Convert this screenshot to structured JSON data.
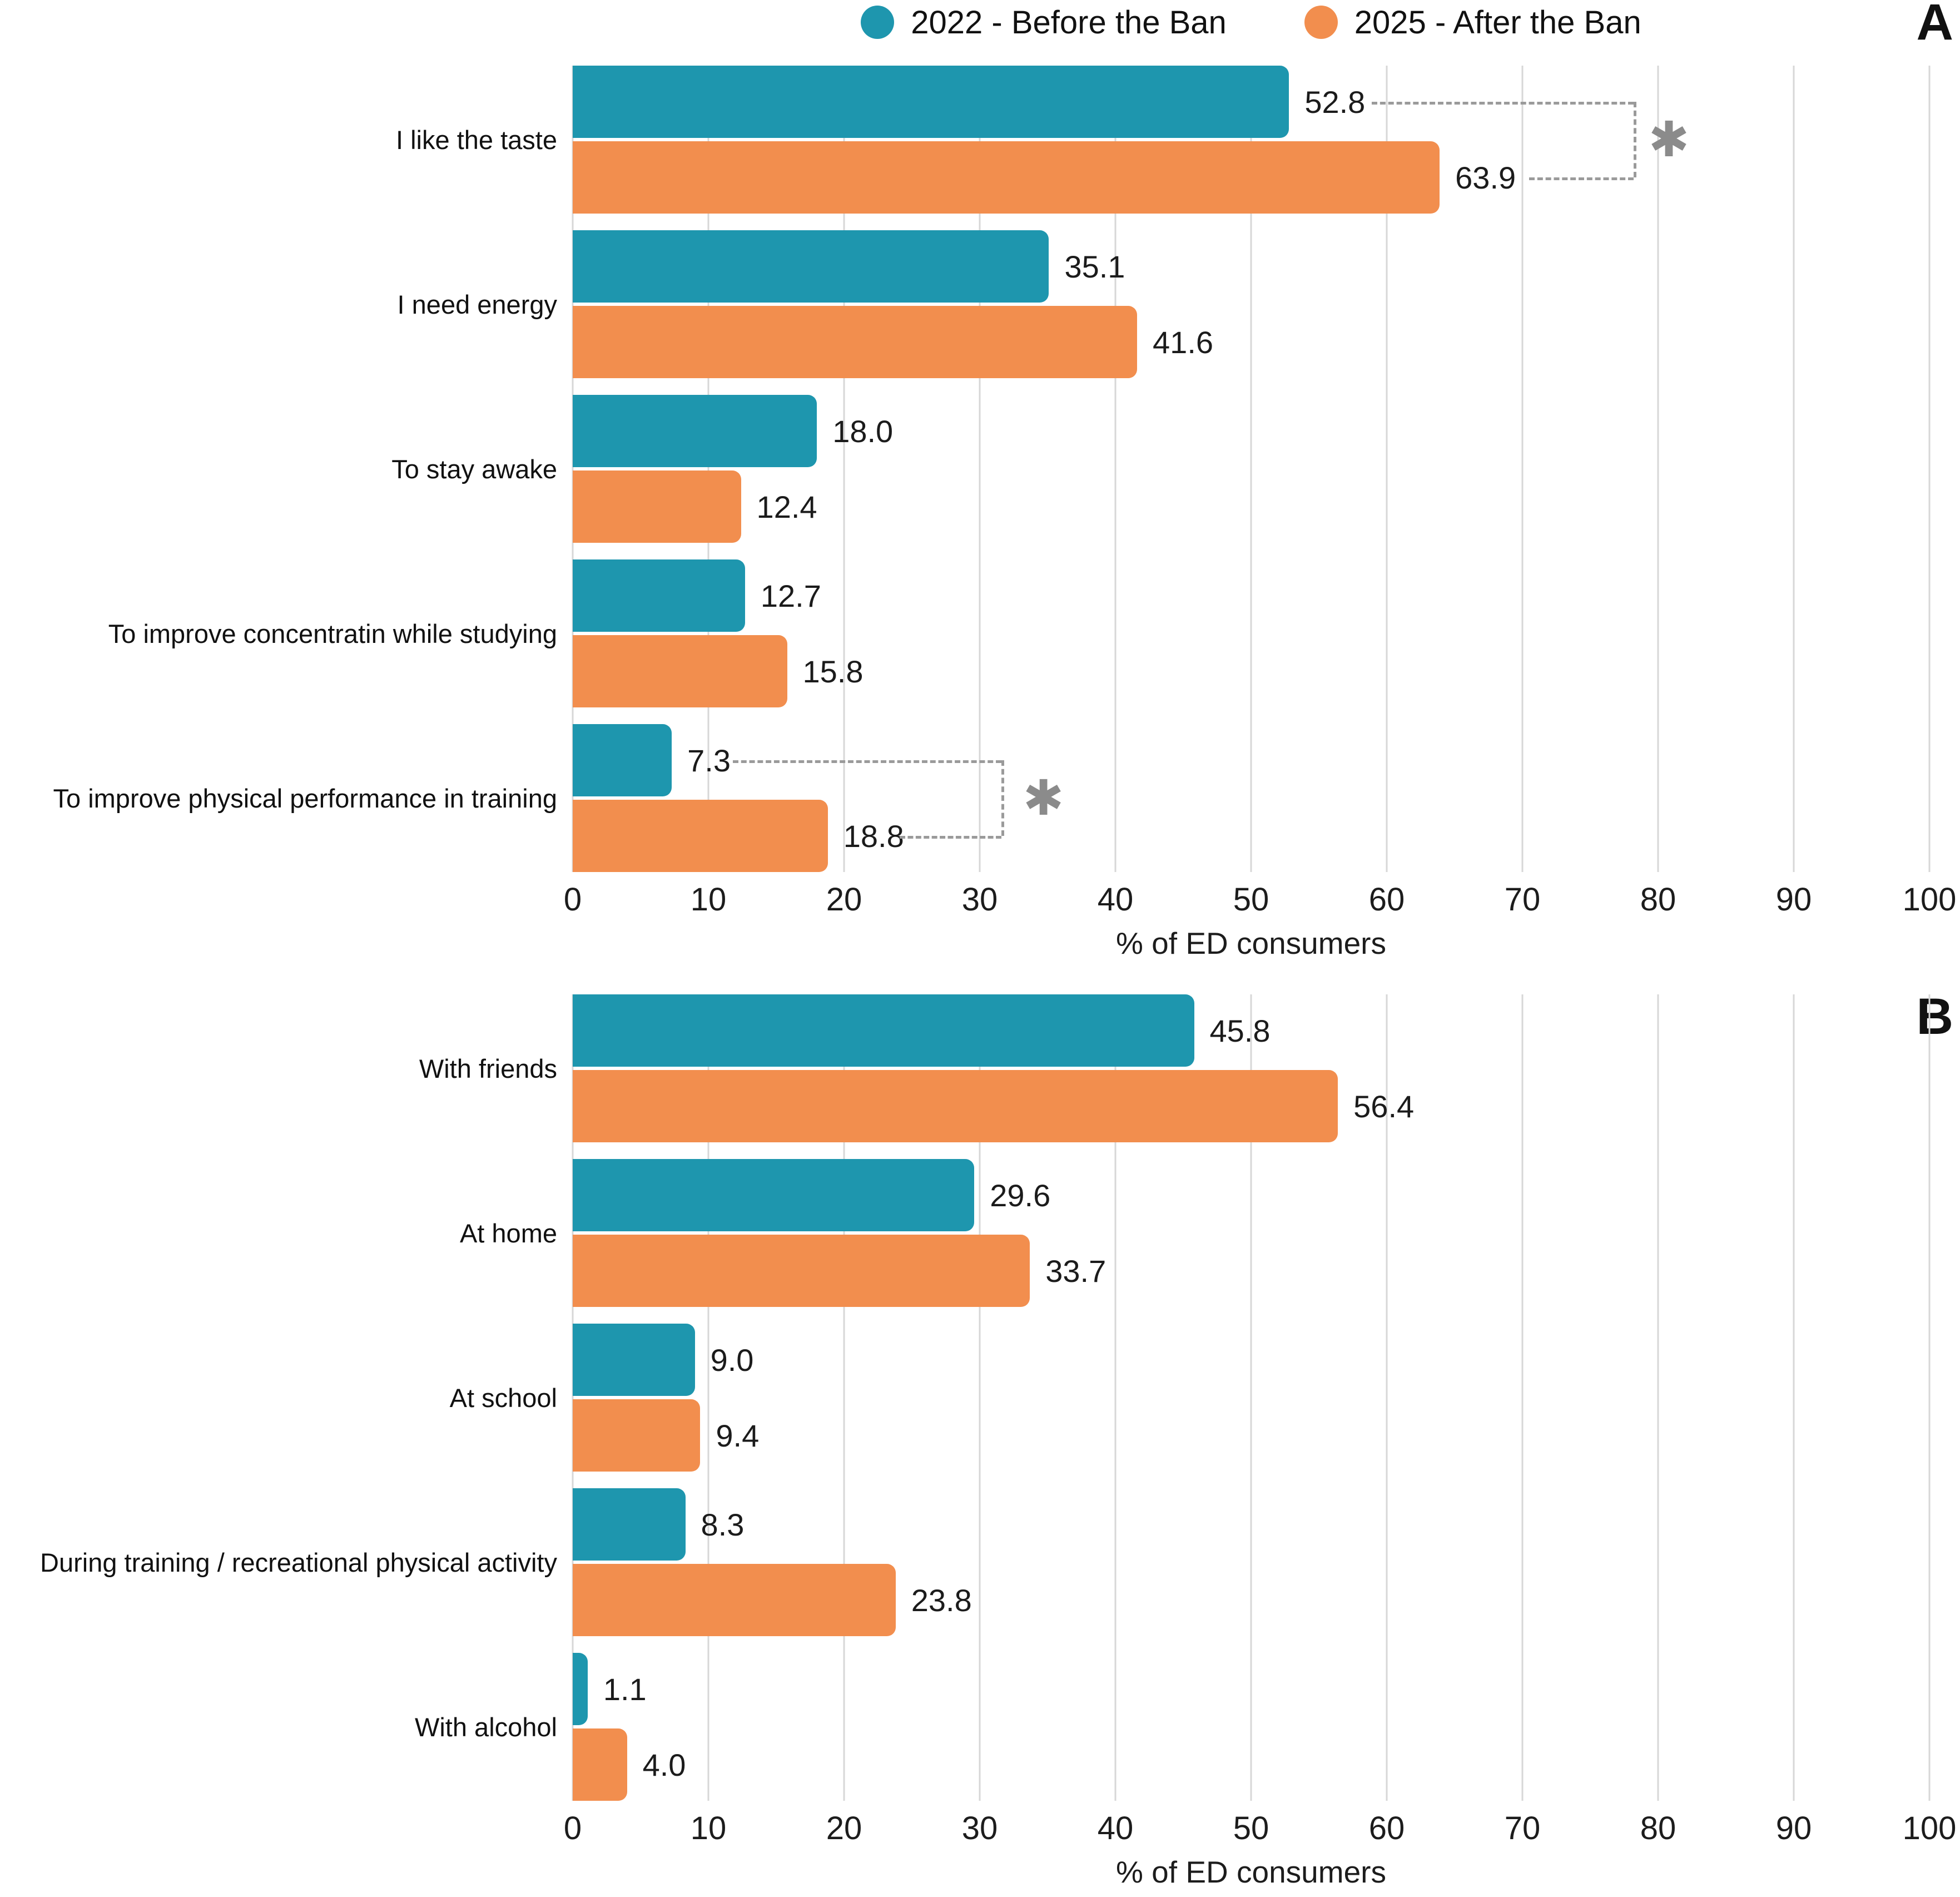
{
  "legend": {
    "items": [
      {
        "label": "2022 - Before the Ban",
        "color": "#1E96AE"
      },
      {
        "label": "2025 - After the Ban",
        "color": "#F28E4E"
      }
    ]
  },
  "colors": {
    "series_2022": "#1E96AE",
    "series_2025": "#F28E4E",
    "gridline": "#d7d7d7",
    "dashed_bracket": "#9a9a9a",
    "asterisk": "#8b8b8b",
    "text": "#1c1c1c"
  },
  "chart_data": [
    {
      "type": "bar",
      "orientation": "horizontal",
      "panel_letter": "A",
      "xlabel": "% of ED consumers",
      "xlim": [
        0,
        100
      ],
      "xticks": [
        0,
        10,
        20,
        30,
        40,
        50,
        60,
        70,
        80,
        90,
        100
      ],
      "grid": true,
      "legend_position": "top",
      "categories": [
        "I like the taste",
        "I need energy",
        "To stay awake",
        "To improve concentratin while studying",
        "To improve physical performance in training"
      ],
      "series": [
        {
          "name": "2022 - Before the Ban",
          "color": "#1E96AE",
          "values": [
            52.8,
            35.1,
            18.0,
            12.7,
            7.3
          ]
        },
        {
          "name": "2025 - After the Ban",
          "color": "#F28E4E",
          "values": [
            63.9,
            41.6,
            12.4,
            15.8,
            18.8
          ]
        }
      ],
      "significance": [
        {
          "category_index": 0,
          "symbol": "✱",
          "upper_start_pct": 58.9,
          "lower_start_pct": 70.5,
          "bracket_pct": 78.2,
          "asterisk_pct": 80.8
        },
        {
          "category_index": 4,
          "symbol": "✱",
          "upper_start_pct": 11.8,
          "lower_start_pct": 24.1,
          "bracket_pct": 31.6,
          "asterisk_pct": 34.7
        }
      ]
    },
    {
      "type": "bar",
      "orientation": "horizontal",
      "panel_letter": "B",
      "xlabel": "% of ED consumers",
      "xlim": [
        0,
        100
      ],
      "xticks": [
        0,
        10,
        20,
        30,
        40,
        50,
        60,
        70,
        80,
        90,
        100
      ],
      "grid": true,
      "categories": [
        "With friends",
        "At home",
        "At school",
        "During training / recreational physical activity",
        "With alcohol"
      ],
      "series": [
        {
          "name": "2022 - Before the Ban",
          "color": "#1E96AE",
          "values": [
            45.8,
            29.6,
            9.0,
            8.3,
            1.1
          ]
        },
        {
          "name": "2025 - After the Ban",
          "color": "#F28E4E",
          "values": [
            56.4,
            33.7,
            9.4,
            23.8,
            4.0
          ]
        }
      ],
      "significance": []
    }
  ]
}
